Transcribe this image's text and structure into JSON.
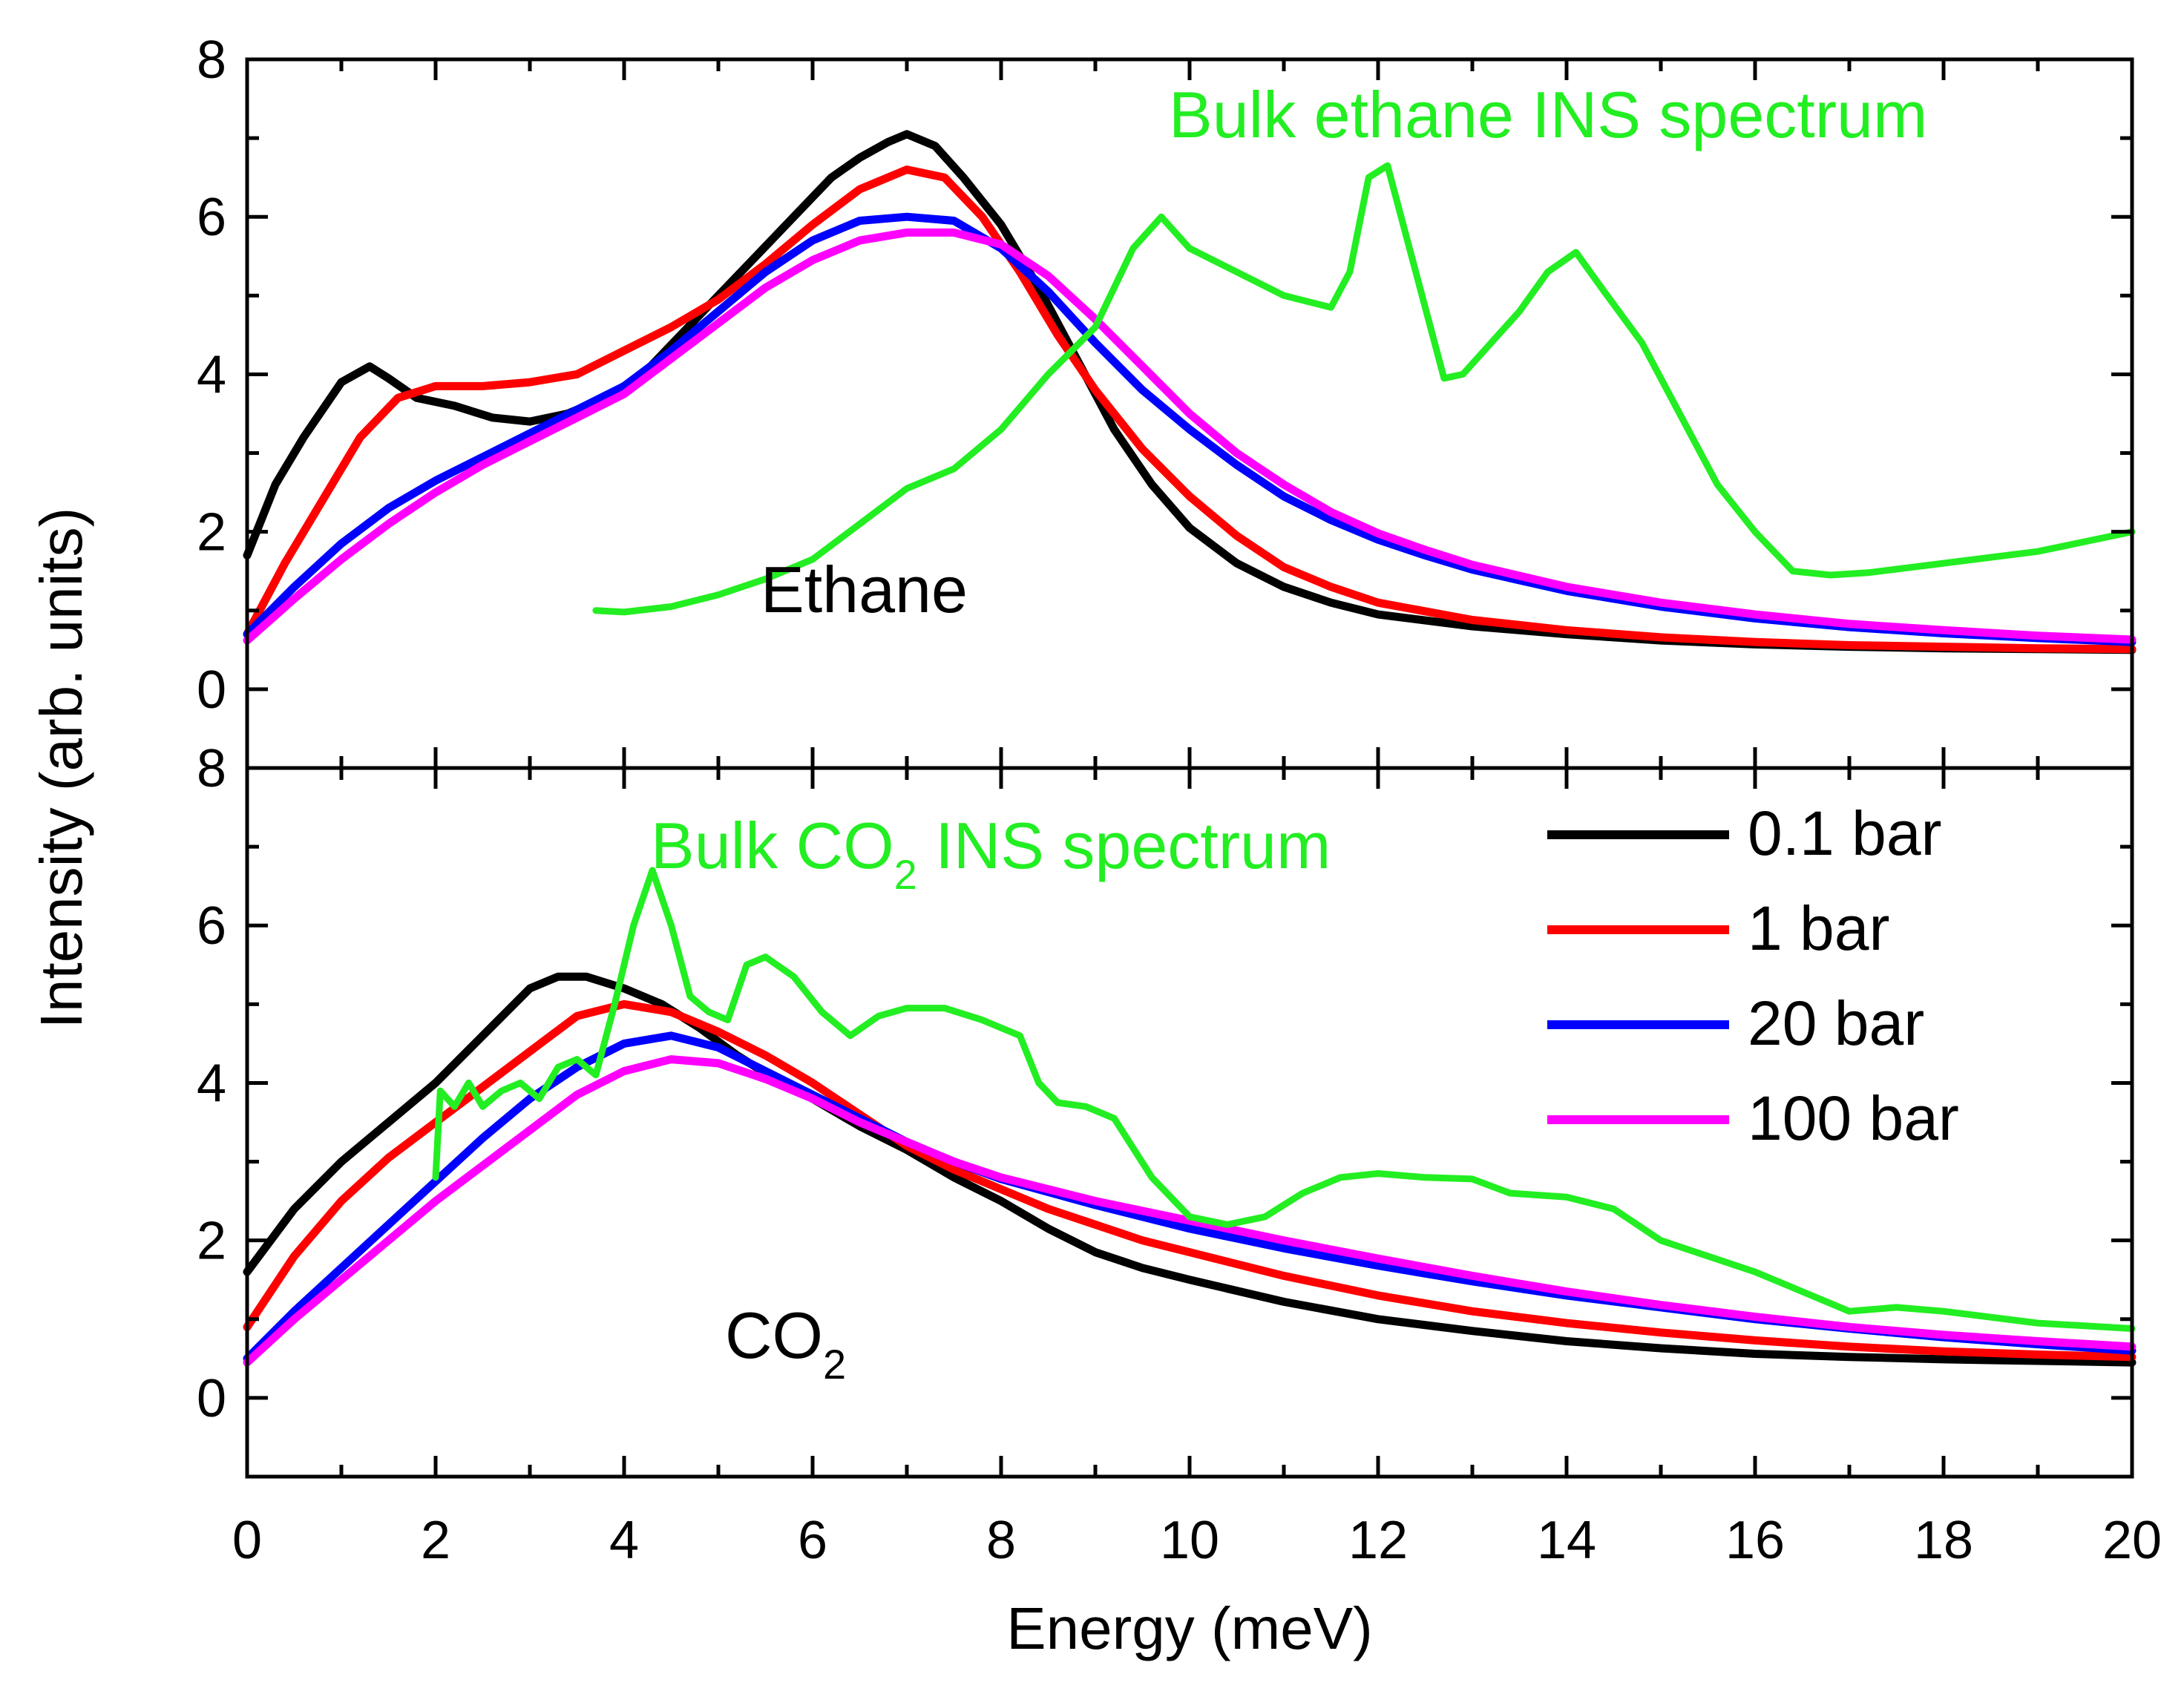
{
  "chart_data": [
    {
      "panel": "top",
      "type": "line",
      "ylabel": "Intensity (arb. units)",
      "xlim": [
        0,
        20
      ],
      "ylim": [
        -1,
        8
      ],
      "yticks": [
        0,
        2,
        4,
        6,
        8
      ],
      "sample_label": "Ethane",
      "bulk_label": "Bulk ethane INS spectrum",
      "series": [
        {
          "name": "0.1 bar",
          "color": "#000000",
          "x": [
            0,
            0.3,
            0.6,
            1.0,
            1.3,
            1.5,
            1.8,
            2.2,
            2.6,
            3.0,
            3.4,
            3.8,
            4.2,
            4.6,
            5.0,
            5.4,
            5.8,
            6.2,
            6.5,
            6.8,
            7.0,
            7.3,
            7.6,
            8.0,
            8.4,
            8.8,
            9.2,
            9.6,
            10.0,
            10.5,
            11.0,
            11.5,
            12.0,
            13.0,
            14.0,
            15.0,
            16.0,
            17.0,
            18.0,
            19.0,
            20.0
          ],
          "y": [
            1.7,
            2.6,
            3.2,
            3.9,
            4.1,
            3.95,
            3.7,
            3.6,
            3.45,
            3.4,
            3.5,
            3.7,
            4.0,
            4.5,
            5.0,
            5.5,
            6.0,
            6.5,
            6.75,
            6.95,
            7.05,
            6.9,
            6.5,
            5.9,
            5.1,
            4.2,
            3.3,
            2.6,
            2.05,
            1.6,
            1.3,
            1.1,
            0.95,
            0.8,
            0.7,
            0.62,
            0.57,
            0.54,
            0.52,
            0.51,
            0.5
          ]
        },
        {
          "name": "1 bar",
          "color": "#ff0000",
          "x": [
            0,
            0.4,
            0.8,
            1.2,
            1.6,
            2.0,
            2.5,
            3.0,
            3.5,
            4.0,
            4.5,
            5.0,
            5.5,
            6.0,
            6.5,
            7.0,
            7.4,
            7.8,
            8.2,
            8.6,
            9.0,
            9.5,
            10.0,
            10.5,
            11.0,
            11.5,
            12.0,
            13.0,
            14.0,
            15.0,
            16.0,
            17.0,
            18.0,
            19.0,
            20.0
          ],
          "y": [
            0.7,
            1.6,
            2.4,
            3.2,
            3.7,
            3.85,
            3.85,
            3.9,
            4.0,
            4.3,
            4.6,
            4.95,
            5.4,
            5.9,
            6.35,
            6.6,
            6.5,
            6.0,
            5.3,
            4.5,
            3.8,
            3.05,
            2.45,
            1.95,
            1.55,
            1.3,
            1.1,
            0.88,
            0.75,
            0.66,
            0.6,
            0.56,
            0.54,
            0.52,
            0.51
          ]
        },
        {
          "name": "20 bar",
          "color": "#0000ff",
          "x": [
            0,
            0.5,
            1.0,
            1.5,
            2.0,
            2.5,
            3.0,
            3.5,
            4.0,
            4.5,
            5.0,
            5.5,
            6.0,
            6.5,
            7.0,
            7.5,
            8.0,
            8.5,
            9.0,
            9.5,
            10.0,
            10.5,
            11.0,
            11.5,
            12.0,
            12.5,
            13.0,
            14.0,
            15.0,
            16.0,
            17.0,
            18.0,
            19.0,
            20.0
          ],
          "y": [
            0.7,
            1.3,
            1.85,
            2.3,
            2.65,
            2.95,
            3.25,
            3.55,
            3.85,
            4.3,
            4.8,
            5.3,
            5.7,
            5.95,
            6.0,
            5.95,
            5.6,
            5.05,
            4.4,
            3.8,
            3.3,
            2.85,
            2.45,
            2.15,
            1.9,
            1.7,
            1.52,
            1.25,
            1.05,
            0.9,
            0.79,
            0.71,
            0.65,
            0.6
          ]
        },
        {
          "name": "100 bar",
          "color": "#ff00ff",
          "x": [
            0,
            0.5,
            1.0,
            1.5,
            2.0,
            2.5,
            3.0,
            3.5,
            4.0,
            4.5,
            5.0,
            5.5,
            6.0,
            6.5,
            7.0,
            7.5,
            8.0,
            8.5,
            9.0,
            9.5,
            10.0,
            10.5,
            11.0,
            11.5,
            12.0,
            12.5,
            13.0,
            14.0,
            15.0,
            16.0,
            17.0,
            18.0,
            19.0,
            20.0
          ],
          "y": [
            0.62,
            1.15,
            1.65,
            2.1,
            2.5,
            2.85,
            3.15,
            3.45,
            3.75,
            4.2,
            4.65,
            5.1,
            5.45,
            5.7,
            5.8,
            5.8,
            5.65,
            5.25,
            4.7,
            4.1,
            3.5,
            3.0,
            2.6,
            2.25,
            1.98,
            1.77,
            1.58,
            1.3,
            1.1,
            0.95,
            0.83,
            0.75,
            0.68,
            0.63
          ]
        },
        {
          "name": "Bulk ethane INS",
          "color": "#22ee22",
          "x": [
            3.7,
            4.0,
            4.5,
            5.0,
            5.5,
            6.0,
            6.5,
            7.0,
            7.5,
            8.0,
            8.5,
            9.0,
            9.4,
            9.7,
            10.0,
            10.5,
            11.0,
            11.5,
            11.7,
            11.9,
            12.1,
            12.4,
            12.7,
            12.9,
            13.2,
            13.5,
            13.8,
            14.1,
            14.4,
            14.8,
            15.2,
            15.6,
            16.0,
            16.4,
            16.8,
            17.2,
            18.0,
            19.0,
            20.0
          ],
          "y": [
            1.0,
            0.98,
            1.05,
            1.2,
            1.4,
            1.65,
            2.1,
            2.55,
            2.8,
            3.3,
            4.0,
            4.6,
            5.6,
            6.0,
            5.6,
            5.3,
            5.0,
            4.85,
            5.3,
            6.5,
            6.65,
            5.3,
            3.95,
            4.0,
            4.4,
            4.8,
            5.3,
            5.55,
            5.05,
            4.4,
            3.5,
            2.6,
            2.0,
            1.5,
            1.45,
            1.48,
            1.6,
            1.75,
            2.0
          ]
        }
      ]
    },
    {
      "panel": "bottom",
      "type": "line",
      "xlabel": "Energy (meV)",
      "ylabel": "Intensity (arb. units)",
      "xlim": [
        0,
        20
      ],
      "ylim": [
        -1,
        8
      ],
      "xticks": [
        0,
        2,
        4,
        6,
        8,
        10,
        12,
        14,
        16,
        18,
        20
      ],
      "yticks": [
        0,
        2,
        4,
        6,
        8
      ],
      "sample_label": "CO",
      "sample_subscript": "2",
      "bulk_label_prefix": "Bulk CO",
      "bulk_label_sub": "2",
      "bulk_label_suffix": " INS spectrum",
      "legend": [
        "0.1 bar",
        "1 bar",
        "20 bar",
        "100 bar"
      ],
      "series": [
        {
          "name": "0.1 bar",
          "color": "#000000",
          "x": [
            0,
            0.5,
            1.0,
            1.5,
            2.0,
            2.5,
            3.0,
            3.3,
            3.6,
            4.0,
            4.4,
            4.8,
            5.2,
            5.6,
            6.0,
            6.5,
            7.0,
            7.5,
            8.0,
            8.5,
            9.0,
            9.5,
            10.0,
            11.0,
            12.0,
            13.0,
            14.0,
            15.0,
            16.0,
            17.0,
            18.0,
            19.0,
            20.0
          ],
          "y": [
            1.6,
            2.4,
            3.0,
            3.5,
            4.0,
            4.6,
            5.2,
            5.35,
            5.35,
            5.2,
            5.0,
            4.7,
            4.35,
            4.05,
            3.8,
            3.45,
            3.15,
            2.8,
            2.5,
            2.15,
            1.85,
            1.65,
            1.5,
            1.22,
            1.0,
            0.85,
            0.72,
            0.63,
            0.56,
            0.52,
            0.49,
            0.47,
            0.45
          ]
        },
        {
          "name": "1 bar",
          "color": "#ff0000",
          "x": [
            0,
            0.5,
            1.0,
            1.5,
            2.0,
            2.5,
            3.0,
            3.5,
            4.0,
            4.5,
            5.0,
            5.5,
            6.0,
            6.5,
            7.0,
            7.5,
            8.0,
            8.5,
            9.0,
            9.5,
            10.0,
            11.0,
            12.0,
            13.0,
            14.0,
            15.0,
            16.0,
            17.0,
            18.0,
            19.0,
            20.0
          ],
          "y": [
            0.9,
            1.8,
            2.5,
            3.05,
            3.5,
            3.95,
            4.4,
            4.85,
            5.0,
            4.9,
            4.65,
            4.35,
            4.0,
            3.6,
            3.2,
            2.9,
            2.65,
            2.4,
            2.2,
            2.0,
            1.85,
            1.55,
            1.3,
            1.1,
            0.95,
            0.83,
            0.73,
            0.65,
            0.59,
            0.55,
            0.52
          ]
        },
        {
          "name": "20 bar",
          "color": "#0000ff",
          "x": [
            0,
            0.5,
            1.0,
            1.5,
            2.0,
            2.5,
            3.0,
            3.5,
            4.0,
            4.5,
            5.0,
            5.5,
            6.0,
            6.5,
            7.0,
            7.5,
            8.0,
            9.0,
            10.0,
            11.0,
            12.0,
            13.0,
            14.0,
            15.0,
            16.0,
            17.0,
            18.0,
            19.0,
            20.0
          ],
          "y": [
            0.5,
            1.1,
            1.65,
            2.2,
            2.75,
            3.3,
            3.8,
            4.2,
            4.5,
            4.6,
            4.45,
            4.15,
            3.85,
            3.55,
            3.25,
            3.0,
            2.78,
            2.45,
            2.15,
            1.9,
            1.68,
            1.48,
            1.3,
            1.15,
            1.0,
            0.88,
            0.77,
            0.68,
            0.6
          ]
        },
        {
          "name": "100 bar",
          "color": "#ff00ff",
          "x": [
            0,
            0.5,
            1.0,
            1.5,
            2.0,
            2.5,
            3.0,
            3.5,
            4.0,
            4.5,
            5.0,
            5.5,
            6.0,
            6.5,
            7.0,
            7.5,
            8.0,
            9.0,
            10.0,
            11.0,
            12.0,
            13.0,
            14.0,
            15.0,
            16.0,
            17.0,
            18.0,
            19.0,
            20.0
          ],
          "y": [
            0.45,
            1.0,
            1.5,
            2.0,
            2.5,
            2.95,
            3.4,
            3.85,
            4.15,
            4.3,
            4.25,
            4.05,
            3.8,
            3.5,
            3.25,
            3.0,
            2.8,
            2.5,
            2.25,
            2.0,
            1.77,
            1.55,
            1.35,
            1.18,
            1.03,
            0.9,
            0.8,
            0.72,
            0.65
          ]
        },
        {
          "name": "Bulk CO2 INS",
          "color": "#22ee22",
          "x": [
            2.0,
            2.05,
            2.2,
            2.35,
            2.5,
            2.7,
            2.9,
            3.1,
            3.3,
            3.5,
            3.7,
            3.9,
            4.1,
            4.3,
            4.5,
            4.7,
            4.9,
            5.1,
            5.3,
            5.5,
            5.8,
            6.1,
            6.4,
            6.7,
            7.0,
            7.4,
            7.8,
            8.2,
            8.4,
            8.6,
            8.9,
            9.2,
            9.6,
            10.0,
            10.4,
            10.8,
            11.2,
            11.6,
            12.0,
            12.5,
            13.0,
            13.4,
            14.0,
            14.5,
            15.0,
            15.5,
            16.0,
            16.5,
            17.0,
            17.5,
            18.0,
            19.0,
            20.0
          ],
          "y": [
            2.8,
            3.9,
            3.7,
            4.0,
            3.7,
            3.9,
            4.0,
            3.8,
            4.2,
            4.3,
            4.1,
            5.0,
            6.0,
            6.7,
            6.0,
            5.1,
            4.9,
            4.8,
            5.5,
            5.6,
            5.35,
            4.9,
            4.6,
            4.85,
            4.95,
            4.95,
            4.8,
            4.6,
            4.0,
            3.75,
            3.7,
            3.55,
            2.8,
            2.3,
            2.2,
            2.3,
            2.6,
            2.8,
            2.85,
            2.8,
            2.78,
            2.6,
            2.55,
            2.4,
            2.0,
            1.8,
            1.6,
            1.35,
            1.1,
            1.15,
            1.1,
            0.95,
            0.88
          ]
        }
      ]
    }
  ]
}
